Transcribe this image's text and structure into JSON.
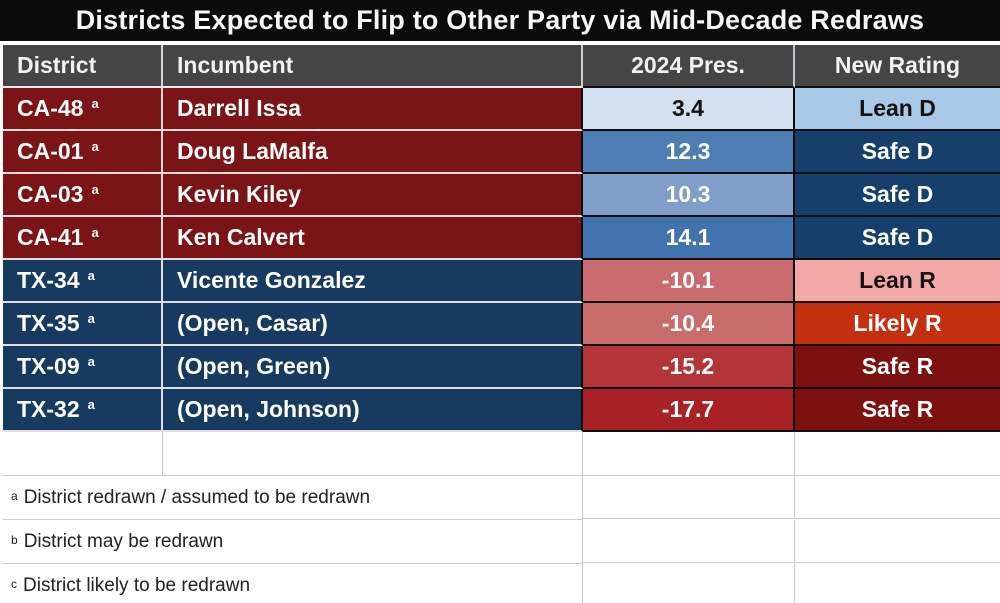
{
  "title": "Districts Expected to Flip to Other Party via Mid-Decade Redraws",
  "columns": [
    "District",
    "Incumbent",
    "2024 Pres.",
    "New Rating"
  ],
  "colors": {
    "title_bg": "#0b0b0b",
    "header_bg": "#454545",
    "ca_row_bg": "#7a1416",
    "tx_row_bg": "#163a60",
    "safe_d_bg": "#16406b",
    "lean_d_bg": "#a9c9e9",
    "lean_r_bg": "#f2a8a7",
    "likely_r_bg": "#c42f10",
    "safe_r_bg": "#7d1111"
  },
  "rows": [
    {
      "district": "CA-48",
      "note": "a",
      "incumbent": "Darrell Issa",
      "pres_2024": "3.4",
      "rating": "Lean D",
      "row_bg": "#7a1416",
      "pres_bg": "#d4e1ee",
      "pres_fg": "#121212",
      "rating_bg": "#a9c9e9",
      "rating_fg": "#121212"
    },
    {
      "district": "CA-01",
      "note": "a",
      "incumbent": "Doug LaMalfa",
      "pres_2024": "12.3",
      "rating": "Safe D",
      "row_bg": "#7a1416",
      "pres_bg": "#4d7db2",
      "pres_fg": "#ffffff",
      "rating_bg": "#16406b",
      "rating_fg": "#ffffff"
    },
    {
      "district": "CA-03",
      "note": "a",
      "incumbent": "Kevin Kiley",
      "pres_2024": "10.3",
      "rating": "Safe D",
      "row_bg": "#7a1416",
      "pres_bg": "#7f9fc8",
      "pres_fg": "#ffffff",
      "rating_bg": "#16406b",
      "rating_fg": "#ffffff"
    },
    {
      "district": "CA-41",
      "note": "a",
      "incumbent": "Ken Calvert",
      "pres_2024": "14.1",
      "rating": "Safe D",
      "row_bg": "#7a1416",
      "pres_bg": "#4173ae",
      "pres_fg": "#ffffff",
      "rating_bg": "#16406b",
      "rating_fg": "#ffffff"
    },
    {
      "district": "TX-34",
      "note": "a",
      "incumbent": "Vicente Gonzalez",
      "pres_2024": "-10.1",
      "rating": "Lean R",
      "row_bg": "#163a60",
      "pres_bg": "#c96b6e",
      "pres_fg": "#ffffff",
      "rating_bg": "#f2a8a7",
      "rating_fg": "#121212"
    },
    {
      "district": "TX-35",
      "note": "a",
      "incumbent": "(Open, Casar)",
      "pres_2024": "-10.4",
      "rating": "Likely R",
      "row_bg": "#163a60",
      "pres_bg": "#c76b6b",
      "pres_fg": "#ffffff",
      "rating_bg": "#c42f10",
      "rating_fg": "#ffffff"
    },
    {
      "district": "TX-09",
      "note": "a",
      "incumbent": "(Open, Green)",
      "pres_2024": "-15.2",
      "rating": "Safe R",
      "row_bg": "#163a60",
      "pres_bg": "#b43538",
      "pres_fg": "#ffffff",
      "rating_bg": "#7d1111",
      "rating_fg": "#ffffff"
    },
    {
      "district": "TX-32",
      "note": "a",
      "incumbent": "(Open, Johnson)",
      "pres_2024": "-17.7",
      "rating": "Safe R",
      "row_bg": "#163a60",
      "pres_bg": "#a82125",
      "pres_fg": "#ffffff",
      "rating_bg": "#7d1111",
      "rating_fg": "#ffffff"
    }
  ],
  "footnotes": [
    {
      "marker": "a",
      "text": "District redrawn / assumed to be redrawn"
    },
    {
      "marker": "b",
      "text": "District may be redrawn"
    },
    {
      "marker": "c",
      "text": "District likely to be redrawn"
    }
  ]
}
